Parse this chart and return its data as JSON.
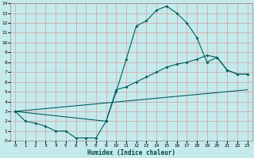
{
  "xlabel": "Humidex (Indice chaleur)",
  "bg_color": "#c5eaec",
  "grid_color": "#d4a0a0",
  "line_color": "#006060",
  "xlim": [
    -0.5,
    23.5
  ],
  "ylim": [
    0,
    14
  ],
  "xticks": [
    0,
    1,
    2,
    3,
    4,
    5,
    6,
    7,
    8,
    9,
    10,
    11,
    12,
    13,
    14,
    15,
    16,
    17,
    18,
    19,
    20,
    21,
    22,
    23
  ],
  "yticks": [
    0,
    1,
    2,
    3,
    4,
    5,
    6,
    7,
    8,
    9,
    10,
    11,
    12,
    13,
    14
  ],
  "curve1_x": [
    0,
    1,
    2,
    3,
    4,
    5,
    6,
    7,
    8,
    9,
    10,
    11,
    12,
    13,
    14,
    15,
    16,
    17,
    18,
    19,
    20,
    21,
    22,
    23
  ],
  "curve1_y": [
    3.0,
    2.0,
    1.8,
    1.5,
    1.0,
    1.0,
    0.3,
    0.3,
    0.3,
    2.0,
    5.0,
    8.3,
    11.7,
    12.2,
    13.3,
    13.7,
    13.0,
    12.0,
    10.5,
    8.0,
    8.5,
    7.2,
    6.8,
    6.8
  ],
  "curve2_x": [
    0,
    9,
    10,
    11,
    12,
    13,
    14,
    15,
    16,
    17,
    18,
    19,
    20,
    21,
    22,
    23
  ],
  "curve2_y": [
    3.0,
    2.0,
    5.2,
    5.5,
    6.0,
    6.5,
    7.0,
    7.5,
    7.8,
    8.0,
    8.3,
    8.7,
    8.5,
    7.2,
    6.8,
    6.8
  ],
  "curve3_x": [
    0,
    23
  ],
  "curve3_y": [
    3.0,
    5.2
  ]
}
